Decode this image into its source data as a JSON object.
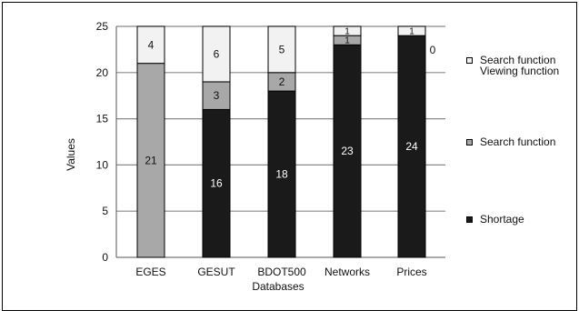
{
  "chart_data": {
    "type": "bar",
    "stacked": true,
    "categories": [
      "EGES",
      "GESUT",
      "BDOT500",
      "Networks",
      "Prices"
    ],
    "series": [
      {
        "name": "Shortage",
        "values": [
          0,
          16,
          18,
          23,
          24
        ],
        "color": "#1a1a1a",
        "label_color": "#ffffff"
      },
      {
        "name": "Search function",
        "values": [
          21,
          3,
          2,
          1,
          0
        ],
        "color": "#a8a8a8",
        "label_color": "#111111"
      },
      {
        "name": "Search function\nViewing function",
        "values": [
          4,
          6,
          5,
          1,
          1
        ],
        "color": "#f2f2f2",
        "label_color": "#111111"
      }
    ],
    "xlabel": "Databases",
    "ylabel": "Values",
    "ylim": [
      0,
      25
    ],
    "yticks": [
      0,
      5,
      10,
      15,
      20,
      25
    ],
    "grid": true,
    "legend_position": "right"
  }
}
